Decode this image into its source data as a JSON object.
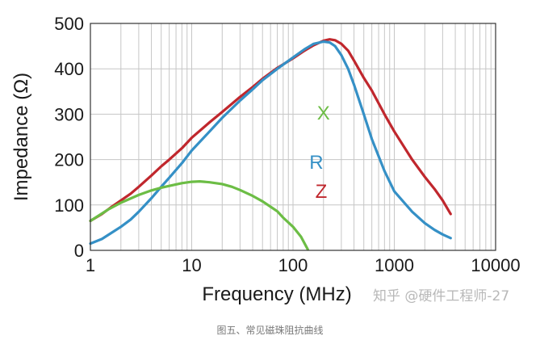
{
  "chart_data": {
    "type": "line",
    "xlabel": "Frequency (MHz)",
    "ylabel": "Impedance (Ω)",
    "x_scale": "log",
    "xlim": [
      1,
      10000
    ],
    "ylim": [
      0,
      500
    ],
    "x_ticks": [
      1,
      10,
      100,
      1000,
      10000
    ],
    "y_ticks": [
      0,
      100,
      200,
      300,
      400,
      500
    ],
    "grid": true,
    "colors": {
      "Z": "#c0272d",
      "R": "#3590c6",
      "X": "#6cbd45",
      "grid": "#c6c6c6"
    },
    "series": [
      {
        "name": "Z",
        "x": [
          1,
          1.3,
          1.6,
          2,
          2.5,
          3,
          4,
          5,
          6,
          8,
          10,
          15,
          20,
          30,
          40,
          50,
          70,
          100,
          130,
          160,
          200,
          230,
          260,
          300,
          350,
          400,
          500,
          600,
          800,
          1000,
          1500,
          2000,
          2500,
          3000,
          3600
        ],
        "y": [
          65,
          80,
          95,
          110,
          125,
          140,
          165,
          185,
          200,
          225,
          248,
          282,
          305,
          338,
          360,
          378,
          402,
          423,
          440,
          452,
          462,
          465,
          463,
          455,
          440,
          418,
          380,
          352,
          300,
          262,
          200,
          162,
          135,
          110,
          80
        ]
      },
      {
        "name": "R",
        "x": [
          1,
          1.3,
          1.6,
          2,
          2.5,
          3,
          4,
          5,
          6,
          8,
          10,
          15,
          20,
          30,
          40,
          50,
          70,
          100,
          130,
          160,
          200,
          230,
          260,
          300,
          350,
          400,
          500,
          600,
          800,
          1000,
          1500,
          2000,
          2500,
          3000,
          3600
        ],
        "y": [
          15,
          25,
          38,
          52,
          68,
          85,
          115,
          140,
          160,
          192,
          220,
          262,
          292,
          330,
          355,
          375,
          400,
          425,
          443,
          455,
          460,
          458,
          450,
          430,
          400,
          365,
          300,
          245,
          175,
          130,
          85,
          60,
          45,
          35,
          27
        ]
      },
      {
        "name": "X",
        "x": [
          1,
          1.5,
          2,
          3,
          4,
          5,
          6,
          8,
          10,
          12,
          15,
          20,
          25,
          30,
          40,
          50,
          60,
          70,
          80,
          100,
          120,
          140
        ],
        "y": [
          65,
          90,
          105,
          122,
          132,
          138,
          142,
          148,
          151,
          152,
          150,
          146,
          140,
          133,
          120,
          108,
          96,
          86,
          72,
          52,
          30,
          2
        ]
      }
    ]
  },
  "watermark": "知乎 @硬件工程师-27",
  "caption": "图五、常见磁珠阻抗曲线"
}
